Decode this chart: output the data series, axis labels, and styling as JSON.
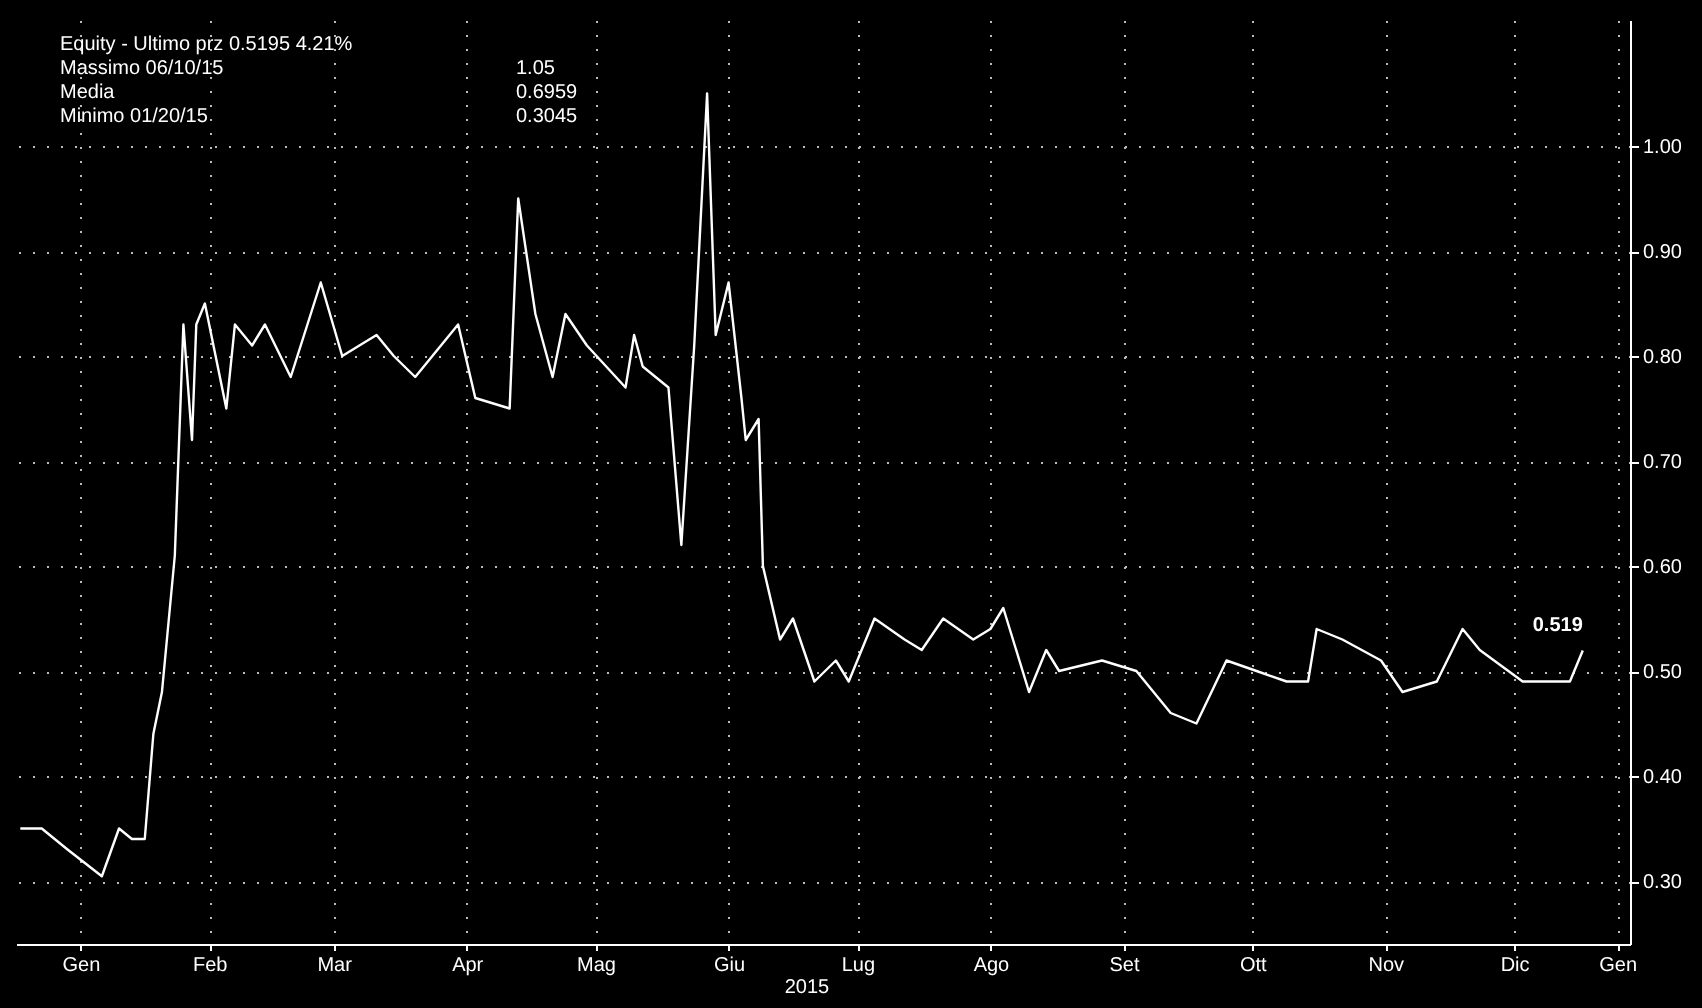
{
  "chart_data": {
    "type": "line",
    "xlabel": "2015",
    "annotations": [
      "Equity - Ultimo prz 0.5195 4.21%",
      "Massimo 06/10/15",
      "1.05",
      "Media",
      "0.6959",
      "Minimo 01/20/15",
      "0.3045",
      {
        "text": "0.519",
        "x": "2015-12-31",
        "y": 0.5195
      }
    ],
    "xlim": [
      "2014-12-31",
      "2016-01-11"
    ],
    "xticks": [
      {
        "value": "2015-01-15",
        "label": "Gen"
      },
      {
        "value": "2015-02-14",
        "label": "Feb"
      },
      {
        "value": "2015-03-15",
        "label": "Mar"
      },
      {
        "value": "2015-04-15",
        "label": "Apr"
      },
      {
        "value": "2015-05-15",
        "label": "Mag"
      },
      {
        "value": "2015-06-15",
        "label": "Giu"
      },
      {
        "value": "2015-07-15",
        "label": "Lug"
      },
      {
        "value": "2015-08-15",
        "label": "Ago"
      },
      {
        "value": "2015-09-15",
        "label": "Set"
      },
      {
        "value": "2015-10-15",
        "label": "Ott"
      },
      {
        "value": "2015-11-15",
        "label": "Nov"
      },
      {
        "value": "2015-12-15",
        "label": "Dic"
      },
      {
        "value": "2016-01-08",
        "label": "Gen"
      }
    ],
    "ylim": [
      0.24,
      1.12
    ],
    "yticks": [
      {
        "value": 0.3,
        "label": "0.30"
      },
      {
        "value": 0.4,
        "label": "0.40"
      },
      {
        "value": 0.5,
        "label": "0.50"
      },
      {
        "value": 0.6,
        "label": "0.60"
      },
      {
        "value": 0.7,
        "label": "0.70"
      },
      {
        "value": 0.8,
        "label": "0.80"
      },
      {
        "value": 0.9,
        "label": "0.90"
      },
      {
        "value": 1.0,
        "label": "1.00"
      }
    ],
    "grid": true,
    "x": [
      "2015-01-01",
      "2015-01-06",
      "2015-01-12",
      "2015-01-20",
      "2015-01-24",
      "2015-01-27",
      "2015-01-30",
      "2015-02-01",
      "2015-02-03",
      "2015-02-06",
      "2015-02-08",
      "2015-02-10",
      "2015-02-11",
      "2015-02-13",
      "2015-02-18",
      "2015-02-20",
      "2015-02-24",
      "2015-02-27",
      "2015-03-05",
      "2015-03-12",
      "2015-03-17",
      "2015-03-25",
      "2015-03-29",
      "2015-04-03",
      "2015-04-13",
      "2015-04-17",
      "2015-04-25",
      "2015-04-27",
      "2015-05-01",
      "2015-05-05",
      "2015-05-08",
      "2015-05-13",
      "2015-05-22",
      "2015-05-24",
      "2015-05-26",
      "2015-06-01",
      "2015-06-04",
      "2015-06-07",
      "2015-06-10",
      "2015-06-12",
      "2015-06-15",
      "2015-06-18",
      "2015-06-19",
      "2015-06-22",
      "2015-06-23",
      "2015-06-27",
      "2015-06-30",
      "2015-07-05",
      "2015-07-10",
      "2015-07-13",
      "2015-07-19",
      "2015-07-26",
      "2015-07-30",
      "2015-08-04",
      "2015-08-11",
      "2015-08-15",
      "2015-08-18",
      "2015-08-24",
      "2015-08-28",
      "2015-08-31",
      "2015-09-10",
      "2015-09-18",
      "2015-09-26",
      "2015-10-02",
      "2015-10-09",
      "2015-10-16",
      "2015-10-23",
      "2015-10-28",
      "2015-10-30",
      "2015-11-05",
      "2015-11-14",
      "2015-11-19",
      "2015-11-27",
      "2015-12-03",
      "2015-12-07",
      "2015-12-17",
      "2015-12-28",
      "2015-12-31"
    ],
    "series": [
      {
        "color": "#ffffff",
        "values": [
          0.35,
          0.35,
          0.33,
          0.3045,
          0.35,
          0.34,
          0.34,
          0.44,
          0.48,
          0.61,
          0.83,
          0.72,
          0.83,
          0.85,
          0.75,
          0.83,
          0.81,
          0.83,
          0.78,
          0.87,
          0.8,
          0.82,
          0.8,
          0.78,
          0.83,
          0.76,
          0.75,
          0.95,
          0.84,
          0.78,
          0.84,
          0.81,
          0.77,
          0.82,
          0.79,
          0.77,
          0.62,
          0.81,
          1.05,
          0.82,
          0.87,
          0.76,
          0.72,
          0.74,
          0.6,
          0.53,
          0.55,
          0.49,
          0.51,
          0.49,
          0.55,
          0.53,
          0.52,
          0.55,
          0.53,
          0.54,
          0.56,
          0.48,
          0.52,
          0.5,
          0.51,
          0.5,
          0.46,
          0.45,
          0.51,
          0.5,
          0.49,
          0.49,
          0.54,
          0.53,
          0.51,
          0.48,
          0.49,
          0.54,
          0.52,
          0.49,
          0.49,
          0.5195
        ]
      }
    ]
  }
}
